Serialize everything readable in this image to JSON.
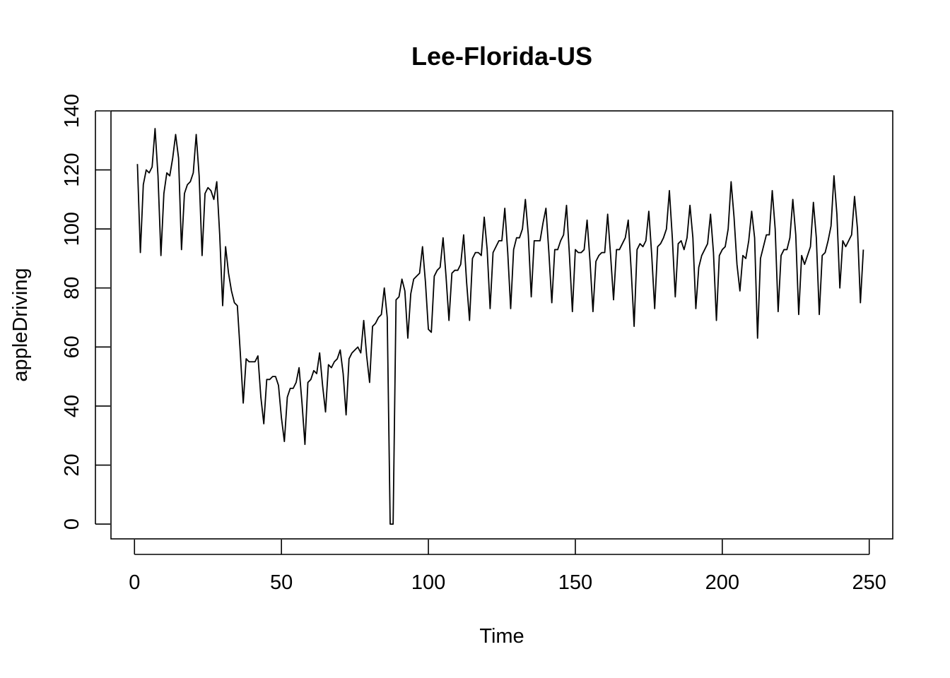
{
  "chart_data": {
    "type": "line",
    "title": "Lee-Florida-US",
    "xlabel": "Time",
    "ylabel": "appleDriving",
    "xlim": [
      -8,
      258
    ],
    "ylim": [
      -5,
      140
    ],
    "xticks": [
      0,
      50,
      100,
      150,
      200,
      250
    ],
    "yticks": [
      0,
      20,
      40,
      60,
      80,
      100,
      120,
      140
    ],
    "grid": false,
    "legend": "none",
    "series": [
      {
        "color": "#000000",
        "x_start": 1,
        "values": [
          122,
          92,
          115,
          120,
          119,
          121,
          134,
          118,
          91,
          112,
          119,
          118,
          124,
          132,
          124,
          93,
          112,
          115,
          116,
          119,
          132,
          118,
          91,
          112,
          114,
          113,
          110,
          116,
          98,
          74,
          94,
          85,
          79,
          75,
          74,
          58,
          41,
          56,
          55,
          55,
          55,
          57,
          43,
          34,
          49,
          49,
          50,
          50,
          47,
          36,
          28,
          43,
          46,
          46,
          48,
          53,
          41,
          27,
          48,
          49,
          52,
          51,
          58,
          47,
          38,
          54,
          53,
          55,
          56,
          59,
          51,
          37,
          56,
          58,
          59,
          60,
          58,
          69,
          57,
          48,
          67,
          68,
          70,
          71,
          80,
          70,
          0,
          0,
          76,
          77,
          83,
          79,
          63,
          78,
          83,
          84,
          85,
          94,
          82,
          66,
          65,
          84,
          86,
          87,
          97,
          84,
          69,
          85,
          86,
          86,
          88,
          98,
          82,
          69,
          90,
          92,
          92,
          91,
          104,
          93,
          73,
          92,
          94,
          96,
          96,
          107,
          92,
          73,
          93,
          97,
          97,
          100,
          110,
          98,
          77,
          96,
          96,
          96,
          102,
          107,
          92,
          75,
          93,
          93,
          96,
          98,
          108,
          91,
          72,
          93,
          92,
          92,
          93,
          103,
          89,
          72,
          89,
          91,
          92,
          92,
          105,
          91,
          76,
          93,
          93,
          95,
          97,
          103,
          86,
          67,
          93,
          95,
          94,
          96,
          106,
          91,
          73,
          94,
          95,
          97,
          100,
          113,
          97,
          77,
          95,
          96,
          93,
          97,
          108,
          97,
          73,
          87,
          91,
          93,
          95,
          105,
          92,
          69,
          91,
          93,
          94,
          100,
          116,
          104,
          88,
          79,
          91,
          90,
          96,
          106,
          97,
          63,
          90,
          94,
          98,
          98,
          113,
          100,
          72,
          91,
          93,
          93,
          97,
          110,
          98,
          71,
          91,
          88,
          91,
          94,
          109,
          97,
          71,
          91,
          92,
          96,
          101,
          118,
          105,
          80,
          96,
          94,
          96,
          98,
          111,
          100,
          75,
          93
        ]
      }
    ]
  }
}
